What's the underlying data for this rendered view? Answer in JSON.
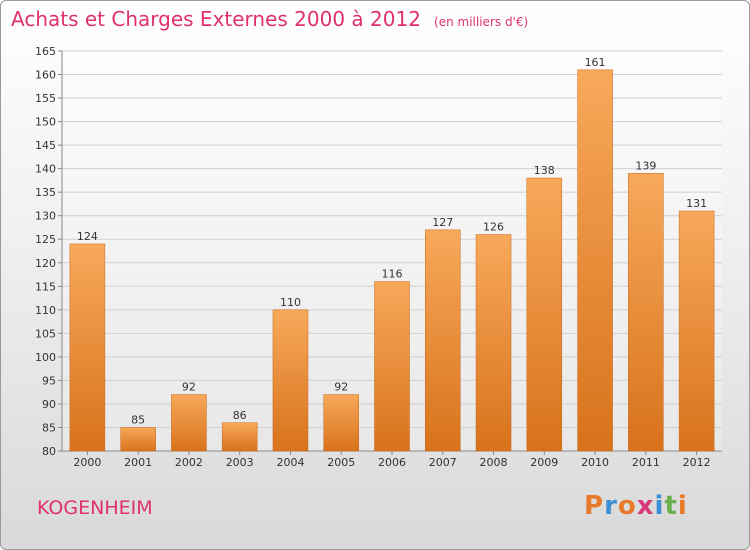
{
  "header": {
    "title": "Achats et Charges Externes 2000 à 2012",
    "unit": "(en milliers d'€)"
  },
  "footer": {
    "commune": "KOGENHEIM",
    "logo": [
      "P",
      "r",
      "o",
      "x",
      "i",
      "t",
      "i"
    ]
  },
  "colors": {
    "title": "#e0306e",
    "bar_light": "#f7a95a",
    "bar_dark": "#d8721c",
    "logo": [
      "#e8792a",
      "#3a8fd6",
      "#e8792a",
      "#d93a7a",
      "#3a8fd6",
      "#6ab04c",
      "#e8792a"
    ]
  },
  "chart_data": {
    "type": "bar",
    "categories": [
      "2000",
      "2001",
      "2002",
      "2003",
      "2004",
      "2005",
      "2006",
      "2007",
      "2008",
      "2009",
      "2010",
      "2011",
      "2012"
    ],
    "values": [
      124,
      85,
      92,
      86,
      110,
      92,
      116,
      127,
      126,
      138,
      161,
      139,
      131
    ],
    "ylim": [
      80,
      165
    ],
    "yticks": [
      80,
      85,
      90,
      95,
      100,
      105,
      110,
      115,
      120,
      125,
      130,
      135,
      140,
      145,
      150,
      155,
      160,
      165
    ],
    "grid": true
  }
}
